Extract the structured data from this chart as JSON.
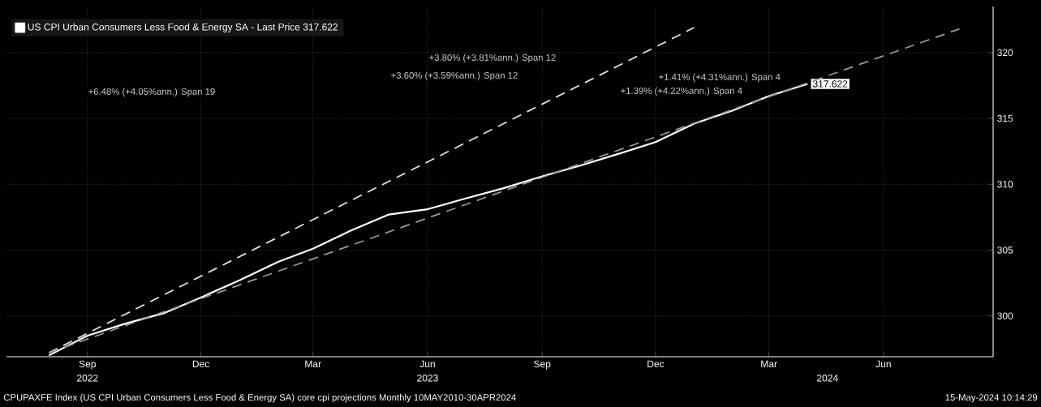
{
  "chart_data": {
    "type": "line",
    "x": [
      "2022-08-01",
      "2022-09-01",
      "2022-10-01",
      "2022-11-01",
      "2022-12-01",
      "2023-01-01",
      "2023-02-01",
      "2023-03-01",
      "2023-04-01",
      "2023-05-01",
      "2023-06-01",
      "2023-07-01",
      "2023-08-01",
      "2023-09-01",
      "2023-10-01",
      "2023-11-01",
      "2023-12-01",
      "2024-01-01",
      "2024-02-01",
      "2024-03-01",
      "2024-04-01"
    ],
    "series": [
      {
        "name": "US CPI Urban Consumers Less Food & Energy SA - Last Price 317.622",
        "color": "#ffffff",
        "values": [
          297.0,
          298.5,
          299.4,
          300.2,
          301.4,
          302.7,
          304.1,
          305.1,
          306.5,
          307.7,
          308.1,
          308.9,
          309.7,
          310.6,
          311.4,
          312.3,
          313.2,
          314.6,
          315.6,
          316.7,
          317.622
        ],
        "value_labels": [
          null,
          null,
          null,
          null,
          null,
          null,
          null,
          null,
          null,
          null,
          null,
          null,
          null,
          null,
          null,
          null,
          null,
          null,
          null,
          null,
          "317.622"
        ]
      },
      {
        "type": "line",
        "color": "#e6e6e6",
        "line_style": "dashed",
        "x": [
          "2022-08-01",
          "2024-01-01"
        ],
        "values": [
          297.2,
          321.9
        ]
      },
      {
        "type": "line",
        "color": "#9a9a9a",
        "line_style": "dashed",
        "x": [
          "2022-08-01",
          "2024-08-01"
        ],
        "values": [
          297.2,
          321.8
        ]
      }
    ],
    "line_style": "solid",
    "xlim": [
      "2022-06-28",
      "2024-08-28"
    ],
    "ylim": [
      296.9,
      323.5
    ],
    "xticks": [
      {
        "value": "2022-09-01",
        "label": "Sep"
      },
      {
        "value": "2022-12-01",
        "label": "Dec"
      },
      {
        "value": "2023-03-01",
        "label": "Mar"
      },
      {
        "value": "2023-06-01",
        "label": "Jun"
      },
      {
        "value": "2023-09-01",
        "label": "Sep"
      },
      {
        "value": "2023-12-01",
        "label": "Dec"
      },
      {
        "value": "2024-03-01",
        "label": "Mar"
      },
      {
        "value": "2024-06-01",
        "label": "Jun"
      }
    ],
    "x2lim": [
      "2022-06-28",
      "2024-08-28"
    ],
    "x2ticks": [
      {
        "value": "2022-09-01",
        "label": "2022"
      },
      {
        "value": "2023-06-01",
        "label": "2023"
      },
      {
        "value": "2024-04-17",
        "label": "2024"
      }
    ],
    "yticks": [
      300,
      305,
      310,
      315,
      320
    ],
    "grid": true,
    "legend": "top left",
    "annotations": [
      "+6.48% (+4.05%ann.) Span 19",
      "+3.60% (+3.59%ann.) Span 12",
      "+3.80% (+3.81%ann.) Span 12",
      "+1.41% (+4.31%ann.) Span 4",
      "+1.39% (+4.22%ann.) Span 4",
      "CPUPAXFE Index (US CPI Urban Consumers Less Food & Energy SA) core cpi projections  Monthly 10MAY2010-30APR2024",
      "15-May-2024 10:14:29"
    ]
  }
}
